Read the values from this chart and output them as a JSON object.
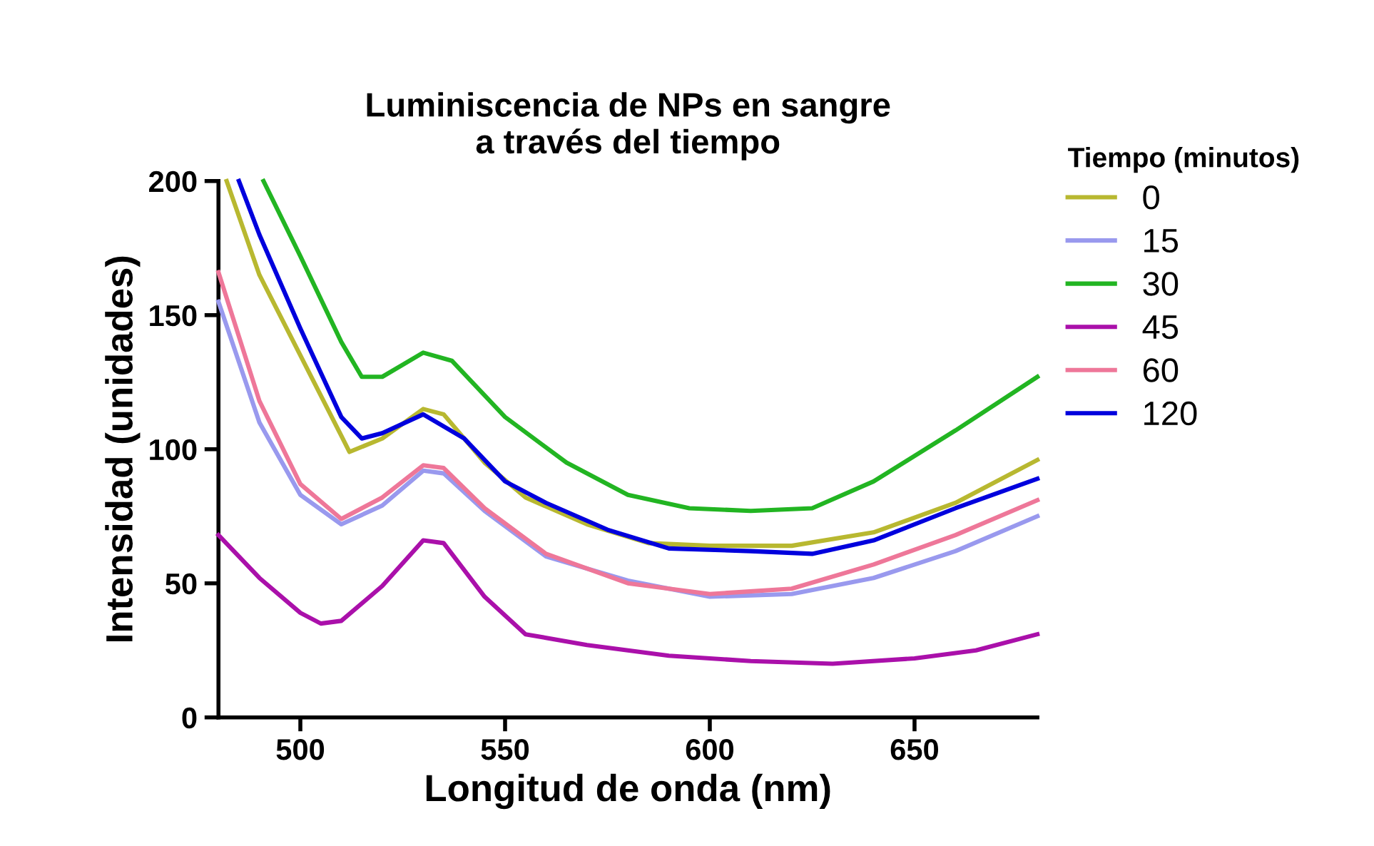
{
  "chart_data": {
    "type": "line",
    "title": "Luminiscencia de NPs en sangre\na través del tiempo",
    "xlabel": "Longitud de onda (nm)",
    "ylabel": "Intensidad (unidades)",
    "legend_title": "Tiempo (minutos)",
    "legend": "right",
    "grid": false,
    "marker": "none",
    "line_style": "solid",
    "xlim": [
      480,
      680
    ],
    "xticks": [
      500,
      550,
      600,
      650
    ],
    "ylim": [
      0,
      200
    ],
    "yticks": [
      0,
      50,
      100,
      150,
      200
    ],
    "series": [
      {
        "name": "0",
        "color": "#b8b830",
        "x": [
          482,
          490,
          500,
          510,
          512,
          520,
          530,
          535,
          545,
          555,
          570,
          585,
          600,
          620,
          640,
          660,
          680
        ],
        "values": [
          200,
          165,
          135,
          105,
          99,
          104,
          115,
          113,
          95,
          82,
          72,
          65,
          64,
          64,
          69,
          80,
          96
        ]
      },
      {
        "name": "15",
        "color": "#9999ee",
        "x": [
          480,
          490,
          500,
          510,
          520,
          530,
          535,
          545,
          560,
          580,
          600,
          620,
          640,
          660,
          680
        ],
        "values": [
          155,
          110,
          83,
          72,
          79,
          92,
          91,
          77,
          60,
          51,
          45,
          46,
          52,
          62,
          75
        ]
      },
      {
        "name": "30",
        "color": "#22b522",
        "x": [
          491,
          500,
          510,
          515,
          520,
          530,
          537,
          550,
          565,
          580,
          595,
          610,
          625,
          640,
          660,
          680
        ],
        "values": [
          200,
          172,
          140,
          127,
          127,
          136,
          133,
          112,
          95,
          83,
          78,
          77,
          78,
          88,
          107,
          127
        ]
      },
      {
        "name": "45",
        "color": "#aa10aa",
        "x": [
          480,
          490,
          500,
          505,
          510,
          520,
          530,
          535,
          545,
          555,
          570,
          590,
          610,
          630,
          650,
          665,
          680
        ],
        "values": [
          68,
          52,
          39,
          35,
          36,
          49,
          66,
          65,
          45,
          31,
          27,
          23,
          21,
          20,
          22,
          25,
          31
        ]
      },
      {
        "name": "60",
        "color": "#ee7799",
        "x": [
          480,
          490,
          500,
          510,
          520,
          530,
          535,
          545,
          560,
          580,
          600,
          620,
          640,
          660,
          680
        ],
        "values": [
          166,
          118,
          87,
          74,
          82,
          94,
          93,
          78,
          61,
          50,
          46,
          48,
          57,
          68,
          81
        ]
      },
      {
        "name": "120",
        "color": "#0000dd",
        "x": [
          485,
          490,
          500,
          510,
          515,
          520,
          530,
          540,
          550,
          560,
          575,
          590,
          610,
          625,
          640,
          660,
          680
        ],
        "values": [
          200,
          180,
          145,
          112,
          104,
          106,
          113,
          104,
          88,
          80,
          70,
          63,
          62,
          61,
          66,
          78,
          89
        ]
      }
    ]
  }
}
